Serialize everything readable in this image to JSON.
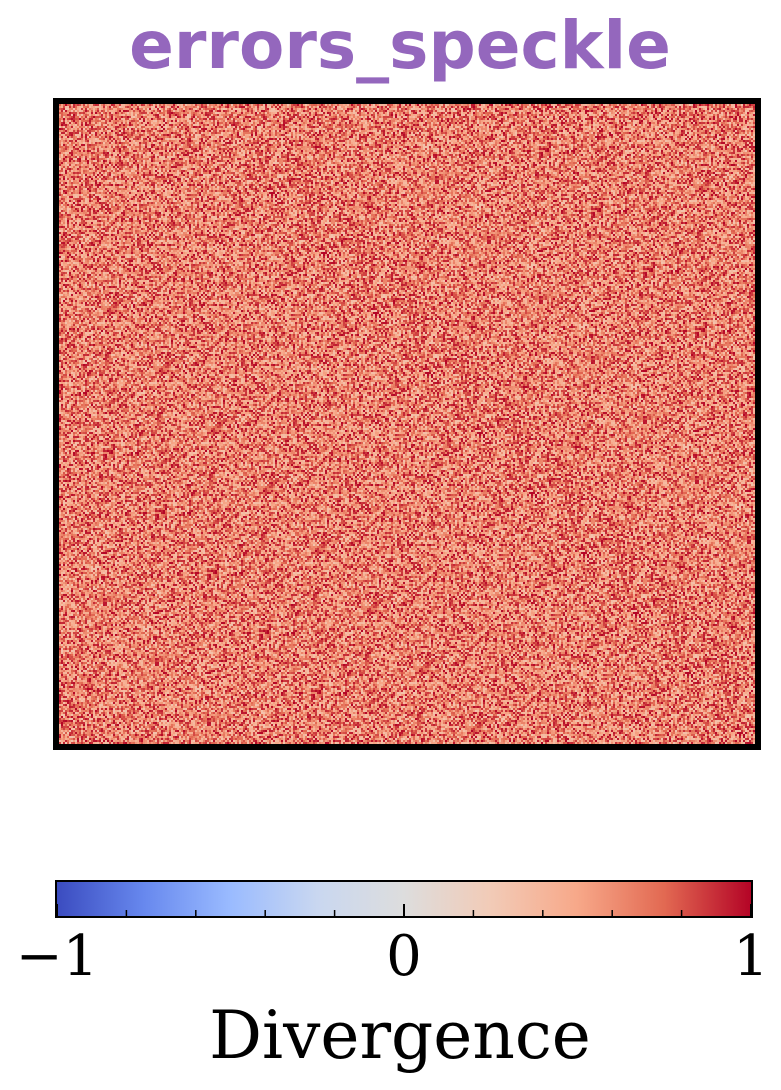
{
  "chart_data": {
    "type": "heatmap",
    "title": "errors_speckle",
    "title_color": "#9467bd",
    "colormap": "coolwarm",
    "value_range": [
      -1,
      1
    ],
    "grid": false,
    "axes_ticks": false,
    "observed_value_distribution": {
      "description": "speckled noise field with values concentrated between roughly 0.3 and 1",
      "min": 0.3,
      "max": 1.0,
      "mean": 0.65
    },
    "colorbar": {
      "label": "Divergence",
      "orientation": "horizontal",
      "placement": "bottom",
      "ticks": [
        "−1",
        "0",
        "1"
      ],
      "tick_values": [
        -1,
        0,
        1
      ],
      "minor_tick_values": [
        -0.8,
        -0.6,
        -0.4,
        -0.2,
        0.2,
        0.4,
        0.6,
        0.8
      ]
    },
    "colormap_stops": [
      "#3b4cc0",
      "#6788ee",
      "#9abbff",
      "#c9d7f0",
      "#dddddd",
      "#f2cbb7",
      "#f7a889",
      "#e26952",
      "#b40426"
    ]
  }
}
